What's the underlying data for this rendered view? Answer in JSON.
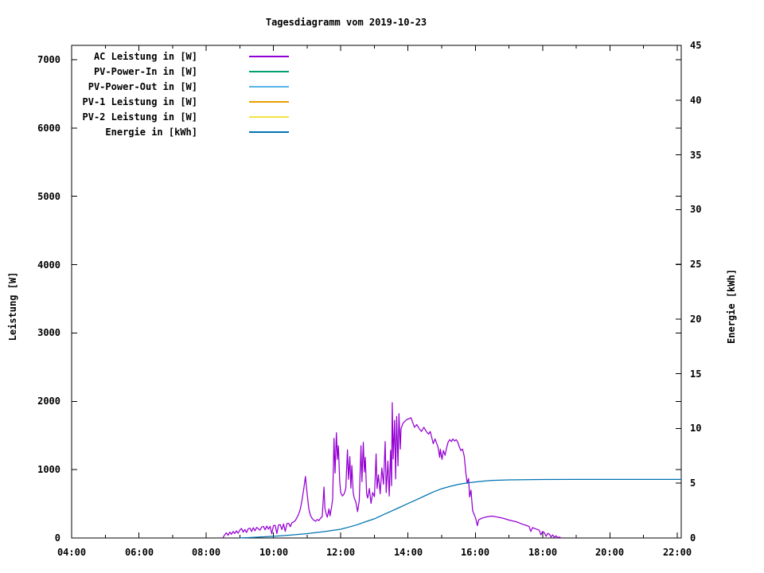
{
  "title": "Tagesdiagramm vom 2019-10-23",
  "axis_labels": {
    "left": "Leistung [W]",
    "right": "Energie [kWh]"
  },
  "colors": {
    "ac": "#9400d3",
    "pv_in": "#009e73",
    "pv_out": "#56b4e9",
    "pv1": "#e69f00",
    "pv2": "#f0e442",
    "energie": "#0072b2",
    "frame": "#000000",
    "background": "#ffffff"
  },
  "chart_data": {
    "type": "line",
    "title": "Tagesdiagramm vom 2019-10-23",
    "xlabel": "",
    "ylabel": "Leistung [W]",
    "y2label": "Energie [kWh]",
    "grid": false,
    "legend_position": "top-left-inside",
    "x_range": [
      4,
      22.12
    ],
    "y1_range": [
      0,
      7210
    ],
    "y2_range": [
      0,
      45
    ],
    "x_ticks": [
      [
        4,
        "04:00"
      ],
      [
        6,
        "06:00"
      ],
      [
        8,
        "08:00"
      ],
      [
        10,
        "10:00"
      ],
      [
        12,
        "12:00"
      ],
      [
        14,
        "14:00"
      ],
      [
        16,
        "16:00"
      ],
      [
        18,
        "18:00"
      ],
      [
        20,
        "20:00"
      ],
      [
        22,
        "22:00"
      ]
    ],
    "x_minor_ticks": [
      5,
      7,
      9,
      11,
      13,
      15,
      17,
      19,
      21
    ],
    "y1_ticks": [
      [
        0,
        "0"
      ],
      [
        1000,
        "1000"
      ],
      [
        2000,
        "2000"
      ],
      [
        3000,
        "3000"
      ],
      [
        4000,
        "4000"
      ],
      [
        5000,
        "5000"
      ],
      [
        6000,
        "6000"
      ],
      [
        7000,
        "7000"
      ]
    ],
    "y2_ticks": [
      [
        0,
        "0"
      ],
      [
        5,
        "5"
      ],
      [
        10,
        "10"
      ],
      [
        15,
        "15"
      ],
      [
        20,
        "20"
      ],
      [
        25,
        "25"
      ],
      [
        30,
        "30"
      ],
      [
        35,
        "35"
      ],
      [
        40,
        "40"
      ],
      [
        45,
        "45"
      ]
    ],
    "series": [
      {
        "id": "ac",
        "name": "AC Leistung in [W]",
        "color": "#9400d3",
        "axis": "y1",
        "visible_in_plot": true,
        "points": [
          [
            8.5,
            5
          ],
          [
            8.55,
            45
          ],
          [
            8.6,
            75
          ],
          [
            8.65,
            40
          ],
          [
            8.7,
            85
          ],
          [
            8.75,
            55
          ],
          [
            8.8,
            95
          ],
          [
            8.85,
            65
          ],
          [
            8.9,
            105
          ],
          [
            8.95,
            70
          ],
          [
            9.0,
            115
          ],
          [
            9.05,
            140
          ],
          [
            9.1,
            85
          ],
          [
            9.15,
            125
          ],
          [
            9.2,
            80
          ],
          [
            9.25,
            135
          ],
          [
            9.3,
            145
          ],
          [
            9.35,
            95
          ],
          [
            9.4,
            150
          ],
          [
            9.45,
            105
          ],
          [
            9.5,
            155
          ],
          [
            9.6,
            115
          ],
          [
            9.65,
            160
          ],
          [
            9.7,
            170
          ],
          [
            9.75,
            120
          ],
          [
            9.8,
            175
          ],
          [
            9.85,
            130
          ],
          [
            9.9,
            170
          ],
          [
            9.95,
            60
          ],
          [
            10.0,
            180
          ],
          [
            10.05,
            185
          ],
          [
            10.1,
            65
          ],
          [
            10.15,
            190
          ],
          [
            10.2,
            195
          ],
          [
            10.25,
            125
          ],
          [
            10.3,
            205
          ],
          [
            10.35,
            95
          ],
          [
            10.4,
            210
          ],
          [
            10.45,
            215
          ],
          [
            10.5,
            165
          ],
          [
            10.55,
            225
          ],
          [
            10.6,
            235
          ],
          [
            10.65,
            255
          ],
          [
            10.7,
            300
          ],
          [
            10.75,
            350
          ],
          [
            10.8,
            430
          ],
          [
            10.85,
            560
          ],
          [
            10.9,
            720
          ],
          [
            10.95,
            900
          ],
          [
            11.0,
            650
          ],
          [
            11.05,
            430
          ],
          [
            11.1,
            330
          ],
          [
            11.15,
            285
          ],
          [
            11.2,
            260
          ],
          [
            11.25,
            245
          ],
          [
            11.3,
            270
          ],
          [
            11.35,
            255
          ],
          [
            11.4,
            290
          ],
          [
            11.45,
            315
          ],
          [
            11.5,
            745
          ],
          [
            11.53,
            430
          ],
          [
            11.57,
            345
          ],
          [
            11.6,
            305
          ],
          [
            11.65,
            425
          ],
          [
            11.68,
            325
          ],
          [
            11.72,
            435
          ],
          [
            11.76,
            570
          ],
          [
            11.8,
            1460
          ],
          [
            11.83,
            950
          ],
          [
            11.87,
            1540
          ],
          [
            11.9,
            1150
          ],
          [
            11.93,
            1350
          ],
          [
            11.97,
            820
          ],
          [
            12.0,
            660
          ],
          [
            12.05,
            615
          ],
          [
            12.1,
            645
          ],
          [
            12.15,
            725
          ],
          [
            12.2,
            1290
          ],
          [
            12.23,
            860
          ],
          [
            12.27,
            1190
          ],
          [
            12.3,
            730
          ],
          [
            12.33,
            1060
          ],
          [
            12.37,
            665
          ],
          [
            12.4,
            585
          ],
          [
            12.45,
            525
          ],
          [
            12.5,
            385
          ],
          [
            12.55,
            545
          ],
          [
            12.6,
            1350
          ],
          [
            12.63,
            825
          ],
          [
            12.67,
            1400
          ],
          [
            12.7,
            965
          ],
          [
            12.73,
            1180
          ],
          [
            12.77,
            645
          ],
          [
            12.8,
            585
          ],
          [
            12.85,
            725
          ],
          [
            12.9,
            505
          ],
          [
            12.95,
            665
          ],
          [
            13.0,
            605
          ],
          [
            13.05,
            1230
          ],
          [
            13.08,
            725
          ],
          [
            13.12,
            925
          ],
          [
            13.17,
            645
          ],
          [
            13.22,
            1025
          ],
          [
            13.27,
            785
          ],
          [
            13.32,
            1410
          ],
          [
            13.35,
            665
          ],
          [
            13.4,
            1125
          ],
          [
            13.44,
            615
          ],
          [
            13.48,
            1285
          ],
          [
            13.51,
            765
          ],
          [
            13.53,
            1980
          ],
          [
            13.56,
            1155
          ],
          [
            13.6,
            1720
          ],
          [
            13.63,
            865
          ],
          [
            13.66,
            1780
          ],
          [
            13.7,
            1055
          ],
          [
            13.73,
            1820
          ],
          [
            13.77,
            1300
          ],
          [
            13.79,
            1600
          ],
          [
            13.85,
            1680
          ],
          [
            13.95,
            1730
          ],
          [
            14.09,
            1760
          ],
          [
            14.19,
            1620
          ],
          [
            14.26,
            1660
          ],
          [
            14.33,
            1600
          ],
          [
            14.4,
            1560
          ],
          [
            14.47,
            1620
          ],
          [
            14.54,
            1560
          ],
          [
            14.61,
            1520
          ],
          [
            14.66,
            1560
          ],
          [
            14.7,
            1480
          ],
          [
            14.75,
            1380
          ],
          [
            14.8,
            1450
          ],
          [
            14.84,
            1400
          ],
          [
            14.89,
            1330
          ],
          [
            14.94,
            1180
          ],
          [
            14.96,
            1300
          ],
          [
            15.01,
            1150
          ],
          [
            15.05,
            1280
          ],
          [
            15.1,
            1210
          ],
          [
            15.15,
            1330
          ],
          [
            15.19,
            1400
          ],
          [
            15.24,
            1440
          ],
          [
            15.29,
            1410
          ],
          [
            15.33,
            1450
          ],
          [
            15.38,
            1420
          ],
          [
            15.43,
            1440
          ],
          [
            15.48,
            1400
          ],
          [
            15.52,
            1340
          ],
          [
            15.57,
            1280
          ],
          [
            15.62,
            1300
          ],
          [
            15.67,
            1200
          ],
          [
            15.72,
            950
          ],
          [
            15.76,
            800
          ],
          [
            15.8,
            870
          ],
          [
            15.83,
            600
          ],
          [
            15.87,
            700
          ],
          [
            15.92,
            400
          ],
          [
            15.96,
            350
          ],
          [
            16.01,
            290
          ],
          [
            16.06,
            180
          ],
          [
            16.1,
            265
          ],
          [
            16.2,
            290
          ],
          [
            16.3,
            305
          ],
          [
            16.4,
            315
          ],
          [
            16.5,
            320
          ],
          [
            16.6,
            312
          ],
          [
            16.7,
            302
          ],
          [
            16.8,
            292
          ],
          [
            16.9,
            278
          ],
          [
            17.0,
            262
          ],
          [
            17.1,
            250
          ],
          [
            17.2,
            240
          ],
          [
            17.3,
            222
          ],
          [
            17.4,
            202
          ],
          [
            17.5,
            186
          ],
          [
            17.6,
            168
          ],
          [
            17.65,
            95
          ],
          [
            17.7,
            152
          ],
          [
            17.8,
            132
          ],
          [
            17.9,
            114
          ],
          [
            17.95,
            45
          ],
          [
            18.0,
            96
          ],
          [
            18.05,
            80
          ],
          [
            18.1,
            25
          ],
          [
            18.15,
            66
          ],
          [
            18.2,
            56
          ],
          [
            18.25,
            15
          ],
          [
            18.3,
            46
          ],
          [
            18.35,
            10
          ],
          [
            18.4,
            32
          ],
          [
            18.45,
            5
          ],
          [
            18.5,
            14
          ],
          [
            18.55,
            0
          ]
        ]
      },
      {
        "id": "pv_in",
        "name": "PV-Power-In in [W]",
        "color": "#009e73",
        "axis": "y1",
        "visible_in_plot": false,
        "points": []
      },
      {
        "id": "pv_out",
        "name": "PV-Power-Out in [W]",
        "color": "#56b4e9",
        "axis": "y1",
        "visible_in_plot": false,
        "points": []
      },
      {
        "id": "pv1",
        "name": "PV-1 Leistung in [W]",
        "color": "#e69f00",
        "axis": "y1",
        "visible_in_plot": false,
        "points": []
      },
      {
        "id": "pv2",
        "name": "PV-2 Leistung in [W]",
        "color": "#f0e442",
        "axis": "y1",
        "visible_in_plot": false,
        "points": []
      },
      {
        "id": "energie",
        "name": "Energie in [kWh]",
        "color": "#0072b2",
        "axis": "y2",
        "visible_in_plot": true,
        "points": [
          [
            9.0,
            0.01
          ],
          [
            9.2,
            0.03
          ],
          [
            9.5,
            0.07
          ],
          [
            10.0,
            0.15
          ],
          [
            10.5,
            0.26
          ],
          [
            11.0,
            0.4
          ],
          [
            11.5,
            0.58
          ],
          [
            12.0,
            0.8
          ],
          [
            12.25,
            1.0
          ],
          [
            12.5,
            1.22
          ],
          [
            12.75,
            1.5
          ],
          [
            13.0,
            1.75
          ],
          [
            13.25,
            2.1
          ],
          [
            13.5,
            2.45
          ],
          [
            13.75,
            2.8
          ],
          [
            14.0,
            3.15
          ],
          [
            14.25,
            3.5
          ],
          [
            14.5,
            3.85
          ],
          [
            14.75,
            4.2
          ],
          [
            15.0,
            4.5
          ],
          [
            15.25,
            4.72
          ],
          [
            15.5,
            4.9
          ],
          [
            15.75,
            5.02
          ],
          [
            16.0,
            5.12
          ],
          [
            16.25,
            5.2
          ],
          [
            16.5,
            5.26
          ],
          [
            17.0,
            5.31
          ],
          [
            17.5,
            5.33
          ],
          [
            18.0,
            5.34
          ],
          [
            19.0,
            5.35
          ],
          [
            20.0,
            5.35
          ],
          [
            21.0,
            5.35
          ],
          [
            22.12,
            5.35
          ]
        ]
      }
    ]
  }
}
